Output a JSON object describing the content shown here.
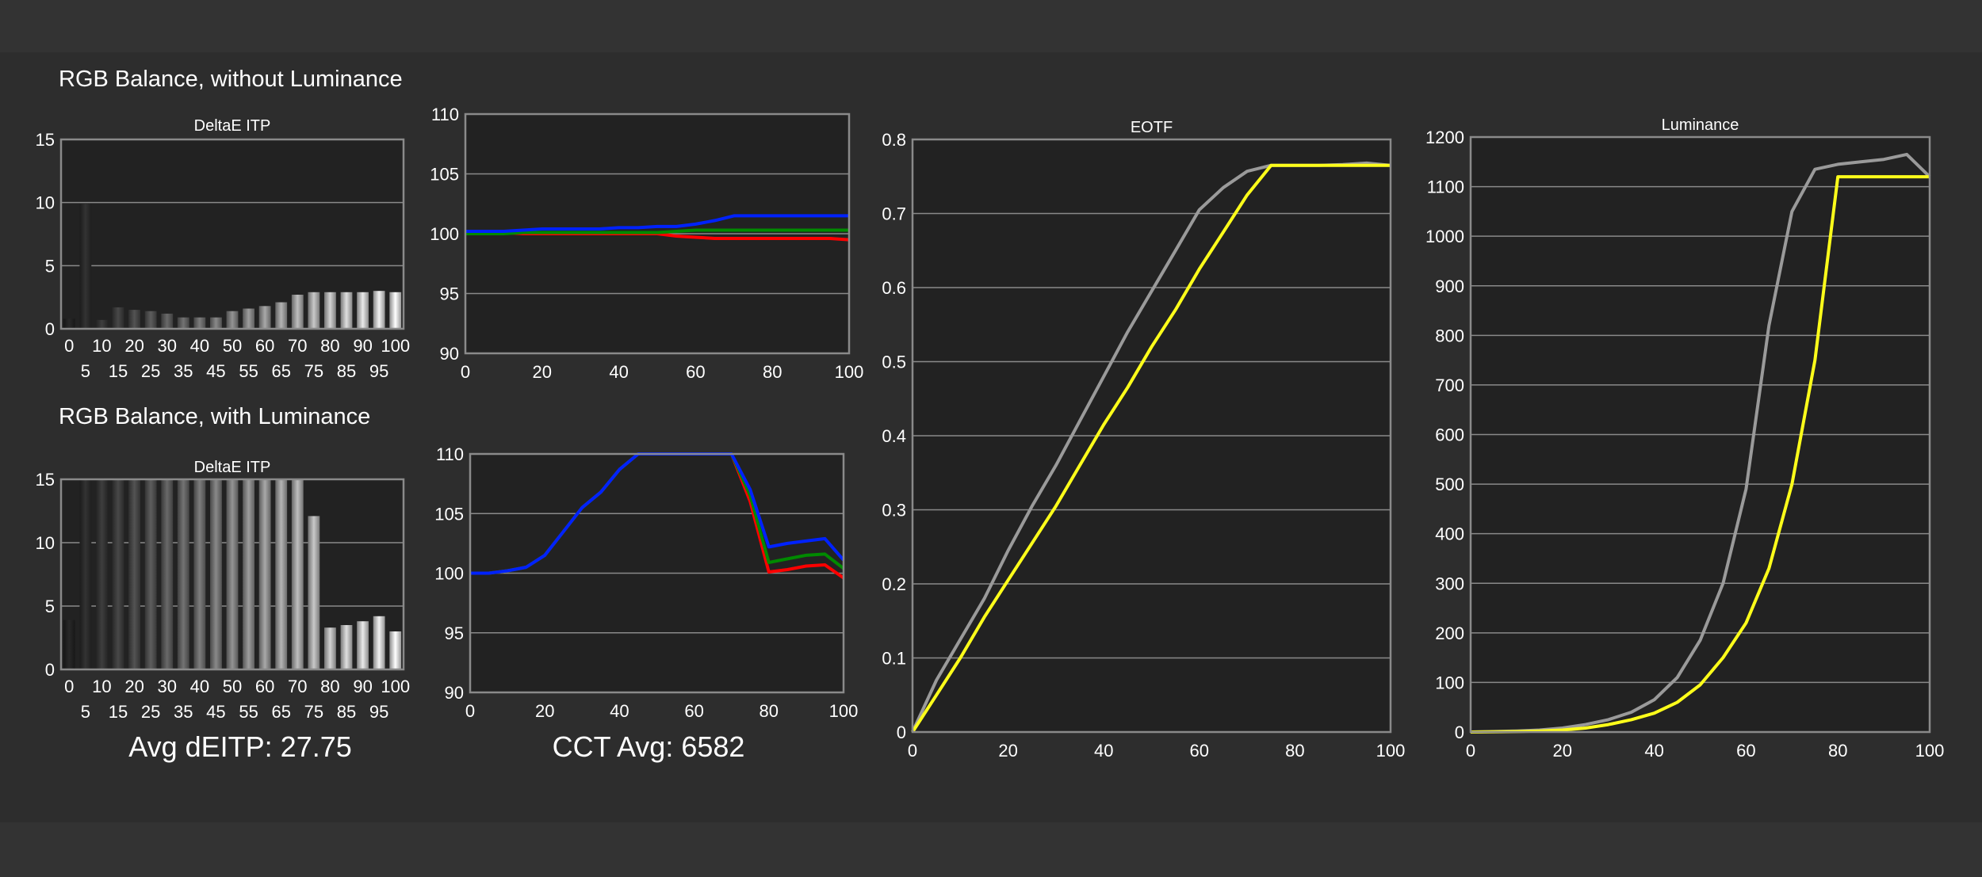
{
  "sections": {
    "without_luminance_title": "RGB Balance, without Luminance",
    "with_luminance_title": "RGB Balance, with Luminance"
  },
  "summary": {
    "avg_deitp": "Avg dEITP: 27.75",
    "cct_avg": "CCT Avg: 6582"
  },
  "colors": {
    "page_background": "#333333",
    "plot_background": "#222222",
    "grid": "#8a8a8a",
    "red": "#ff0000",
    "green": "#008a00",
    "blue": "#0022ff",
    "yellow": "#ffff1a",
    "gray": "#9a9a9a"
  },
  "chart_data": [
    {
      "id": "deltae-without",
      "type": "bar",
      "title": "DeltaE ITP",
      "xlabel": "",
      "ylabel": "",
      "ylim": [
        0,
        15
      ],
      "yticks": [
        0,
        5,
        10,
        15
      ],
      "grid": true,
      "categories": [
        "0",
        "5",
        "10",
        "15",
        "20",
        "25",
        "30",
        "35",
        "40",
        "45",
        "50",
        "55",
        "60",
        "65",
        "70",
        "75",
        "80",
        "85",
        "90",
        "95",
        "100"
      ],
      "values": [
        0.8,
        9.9,
        0.7,
        1.7,
        1.5,
        1.4,
        1.2,
        0.9,
        0.9,
        0.9,
        1.4,
        1.6,
        1.8,
        2.1,
        2.7,
        2.9,
        2.9,
        2.9,
        2.9,
        3.0,
        2.9
      ]
    },
    {
      "id": "rgb-without",
      "type": "line",
      "title": "",
      "xlabel": "",
      "ylabel": "",
      "xlim": [
        0,
        100
      ],
      "ylim": [
        90,
        110
      ],
      "xticks": [
        0,
        20,
        40,
        60,
        80,
        100
      ],
      "yticks": [
        90,
        95,
        100,
        105,
        110
      ],
      "grid": true,
      "x": [
        0,
        5,
        10,
        15,
        20,
        25,
        30,
        35,
        40,
        45,
        50,
        55,
        60,
        65,
        70,
        75,
        80,
        85,
        90,
        95,
        100
      ],
      "series": [
        {
          "color": "#ff0000",
          "values": [
            100.1,
            100.1,
            100.1,
            100.0,
            100.0,
            100.0,
            100.0,
            100.0,
            100.0,
            100.0,
            100.0,
            99.8,
            99.7,
            99.6,
            99.6,
            99.6,
            99.6,
            99.6,
            99.6,
            99.6,
            99.5
          ]
        },
        {
          "color": "#008a00",
          "values": [
            100.0,
            100.0,
            100.0,
            100.1,
            100.1,
            100.1,
            100.1,
            100.1,
            100.1,
            100.1,
            100.1,
            100.2,
            100.3,
            100.3,
            100.3,
            100.3,
            100.3,
            100.3,
            100.3,
            100.3,
            100.3
          ]
        },
        {
          "color": "#0022ff",
          "values": [
            100.2,
            100.2,
            100.2,
            100.3,
            100.4,
            100.4,
            100.4,
            100.4,
            100.5,
            100.5,
            100.6,
            100.6,
            100.8,
            101.1,
            101.5,
            101.5,
            101.5,
            101.5,
            101.5,
            101.5,
            101.5
          ]
        }
      ]
    },
    {
      "id": "deltae-with",
      "type": "bar",
      "title": "DeltaE ITP",
      "xlabel": "",
      "ylabel": "",
      "ylim": [
        0,
        15
      ],
      "yticks": [
        0,
        5,
        10,
        15
      ],
      "grid": true,
      "categories": [
        "0",
        "5",
        "10",
        "15",
        "20",
        "25",
        "30",
        "35",
        "40",
        "45",
        "50",
        "55",
        "60",
        "65",
        "70",
        "75",
        "80",
        "85",
        "90",
        "95",
        "100"
      ],
      "values": [
        3.9,
        15,
        15,
        15,
        15,
        15,
        15,
        15,
        15,
        15,
        15,
        15,
        15,
        15,
        15,
        12.1,
        3.3,
        3.5,
        3.8,
        4.2,
        3.0
      ]
    },
    {
      "id": "rgb-with",
      "type": "line",
      "title": "",
      "xlabel": "",
      "ylabel": "",
      "xlim": [
        0,
        100
      ],
      "ylim": [
        90,
        110
      ],
      "xticks": [
        0,
        20,
        40,
        60,
        80,
        100
      ],
      "yticks": [
        90,
        95,
        100,
        105,
        110
      ],
      "grid": true,
      "x": [
        0,
        5,
        10,
        15,
        20,
        25,
        30,
        35,
        40,
        45,
        50,
        55,
        60,
        65,
        70,
        75,
        80,
        85,
        90,
        95,
        100
      ],
      "series": [
        {
          "color": "#ff0000",
          "values": [
            100,
            100,
            100.2,
            100.5,
            101.5,
            103.5,
            105.5,
            106.8,
            108.7,
            110,
            110,
            110,
            110,
            110,
            110,
            106,
            100.1,
            100.3,
            100.6,
            100.7,
            99.6
          ]
        },
        {
          "color": "#008a00",
          "values": [
            100,
            100,
            100.2,
            100.5,
            101.5,
            103.5,
            105.5,
            106.8,
            108.7,
            110,
            110,
            110,
            110,
            110,
            110,
            106.5,
            100.9,
            101.2,
            101.5,
            101.6,
            100.4
          ]
        },
        {
          "color": "#0022ff",
          "values": [
            100,
            100,
            100.2,
            100.5,
            101.5,
            103.5,
            105.5,
            106.8,
            108.7,
            110,
            110,
            110,
            110,
            110,
            110,
            107,
            102.2,
            102.5,
            102.7,
            102.9,
            101.1
          ]
        }
      ]
    },
    {
      "id": "eotf",
      "type": "line",
      "title": "EOTF",
      "xlabel": "",
      "ylabel": "",
      "xlim": [
        0,
        100
      ],
      "ylim": [
        0,
        0.8
      ],
      "xticks": [
        0,
        20,
        40,
        60,
        80,
        100
      ],
      "yticks": [
        0,
        0.1,
        0.2,
        0.3,
        0.4,
        0.5,
        0.6,
        0.7,
        0.8
      ],
      "grid": true,
      "x": [
        0,
        5,
        10,
        15,
        20,
        25,
        30,
        35,
        40,
        45,
        50,
        55,
        60,
        65,
        70,
        75,
        80,
        85,
        90,
        95,
        100
      ],
      "series": [
        {
          "color": "#9a9a9a",
          "values": [
            0,
            0.07,
            0.125,
            0.18,
            0.245,
            0.305,
            0.36,
            0.42,
            0.48,
            0.54,
            0.595,
            0.65,
            0.705,
            0.735,
            0.757,
            0.765,
            0.765,
            0.765,
            0.766,
            0.768,
            0.765
          ]
        },
        {
          "color": "#ffff1a",
          "values": [
            0,
            0.05,
            0.1,
            0.155,
            0.205,
            0.255,
            0.305,
            0.36,
            0.415,
            0.465,
            0.52,
            0.57,
            0.625,
            0.675,
            0.725,
            0.765,
            0.765,
            0.765,
            0.765,
            0.765,
            0.765
          ]
        }
      ]
    },
    {
      "id": "luminance",
      "type": "line",
      "title": "Luminance",
      "xlabel": "",
      "ylabel": "",
      "xlim": [
        0,
        100
      ],
      "ylim": [
        0,
        1200
      ],
      "xticks": [
        0,
        20,
        40,
        60,
        80,
        100
      ],
      "yticks": [
        0,
        100,
        200,
        300,
        400,
        500,
        600,
        700,
        800,
        900,
        1000,
        1100,
        1200
      ],
      "grid": true,
      "x": [
        0,
        5,
        10,
        15,
        20,
        25,
        30,
        35,
        40,
        45,
        50,
        55,
        60,
        65,
        70,
        75,
        80,
        85,
        90,
        95,
        100
      ],
      "series": [
        {
          "color": "#9a9a9a",
          "values": [
            0,
            1,
            2,
            4,
            8,
            15,
            25,
            40,
            65,
            110,
            185,
            300,
            490,
            820,
            1050,
            1135,
            1145,
            1150,
            1155,
            1165,
            1120
          ]
        },
        {
          "color": "#ffff1a",
          "values": [
            0,
            0.5,
            1,
            2,
            4,
            8,
            15,
            25,
            38,
            60,
            95,
            150,
            220,
            330,
            500,
            750,
            1120,
            1120,
            1120,
            1120,
            1120
          ]
        }
      ]
    }
  ]
}
